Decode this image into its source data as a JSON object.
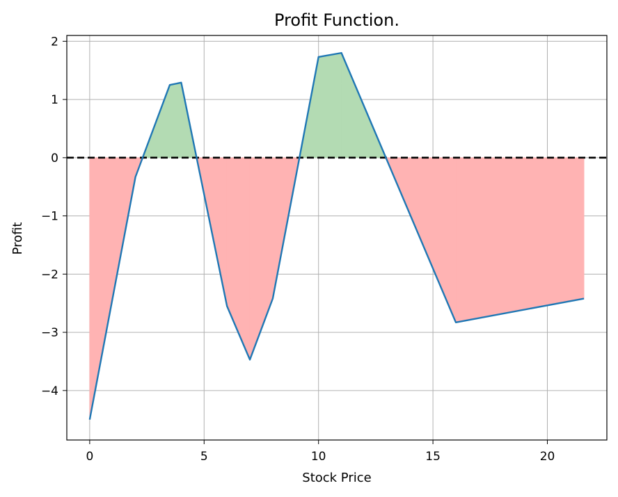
{
  "chart_data": {
    "type": "area",
    "title": "Profit Function.",
    "xlabel": "Stock Price",
    "ylabel": "Profit",
    "xlim": [
      -1.0,
      22.6
    ],
    "ylim": [
      -4.85,
      2.1
    ],
    "x_ticks": [
      0,
      5,
      10,
      15,
      20
    ],
    "x_tick_labels": [
      "0",
      "5",
      "10",
      "15",
      "20"
    ],
    "y_ticks": [
      2,
      1,
      0,
      -1,
      -2,
      -3,
      -4
    ],
    "y_tick_labels": [
      "2",
      "1",
      "0",
      "−1",
      "−2",
      "−3",
      "−4"
    ],
    "grid": true,
    "series": [
      {
        "x": [
          0,
          2,
          3.5,
          4,
          6,
          7,
          8,
          10,
          11,
          16,
          21.6
        ],
        "y": [
          -4.5,
          -0.33,
          1.25,
          1.29,
          -2.55,
          -3.47,
          -2.42,
          1.73,
          1.8,
          -2.83,
          -2.42
        ]
      }
    ],
    "reference_line": {
      "y": 0,
      "style": "dashed",
      "color": "#000000"
    },
    "fill_positive_color": "#b3dbb3",
    "fill_negative_color": "#ffb3b3",
    "line_color": "#1f77b4"
  }
}
